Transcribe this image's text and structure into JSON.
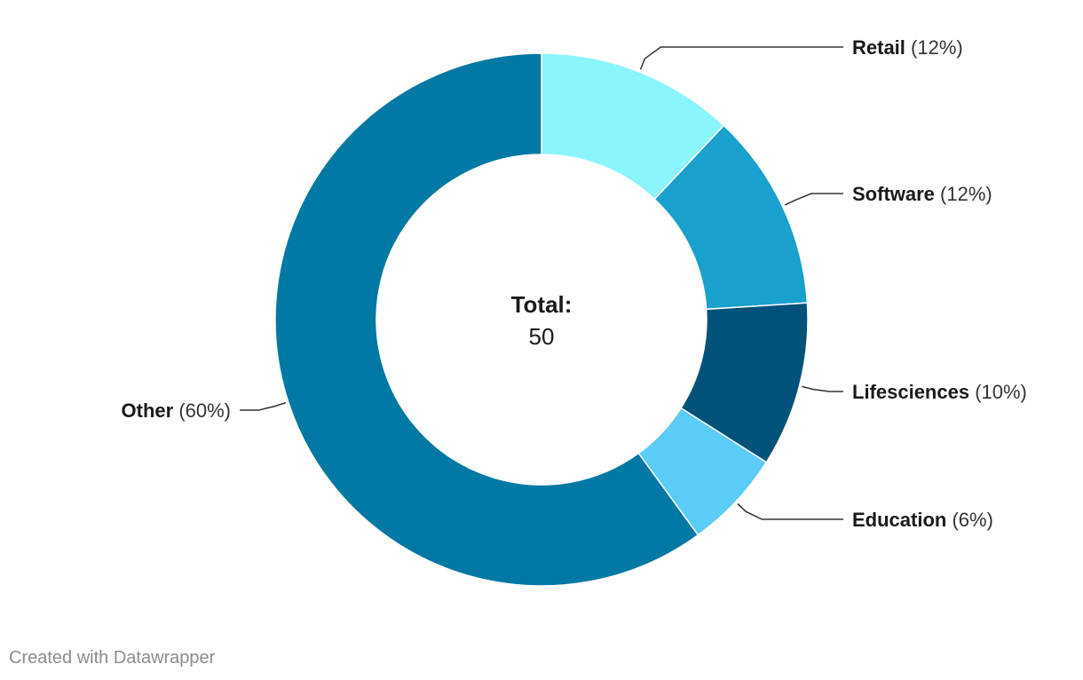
{
  "chart_data": {
    "type": "pie",
    "donut": true,
    "slices": [
      {
        "label": "Retail",
        "percent_label": "(12%)",
        "value": 12,
        "color": "#8af5fd"
      },
      {
        "label": "Software",
        "percent_label": "(12%)",
        "value": 12,
        "color": "#19a0cd"
      },
      {
        "label": "Lifesciences",
        "percent_label": "(10%)",
        "value": 10,
        "color": "#01527a"
      },
      {
        "label": "Education",
        "percent_label": "(6%)",
        "value": 6,
        "color": "#5bcbf7"
      },
      {
        "label": "Other",
        "percent_label": "(60%)",
        "value": 60,
        "color": "#0278a4"
      }
    ],
    "center": {
      "title": "Total:",
      "value": "50"
    }
  },
  "footer": {
    "credit": "Created with Datawrapper"
  }
}
